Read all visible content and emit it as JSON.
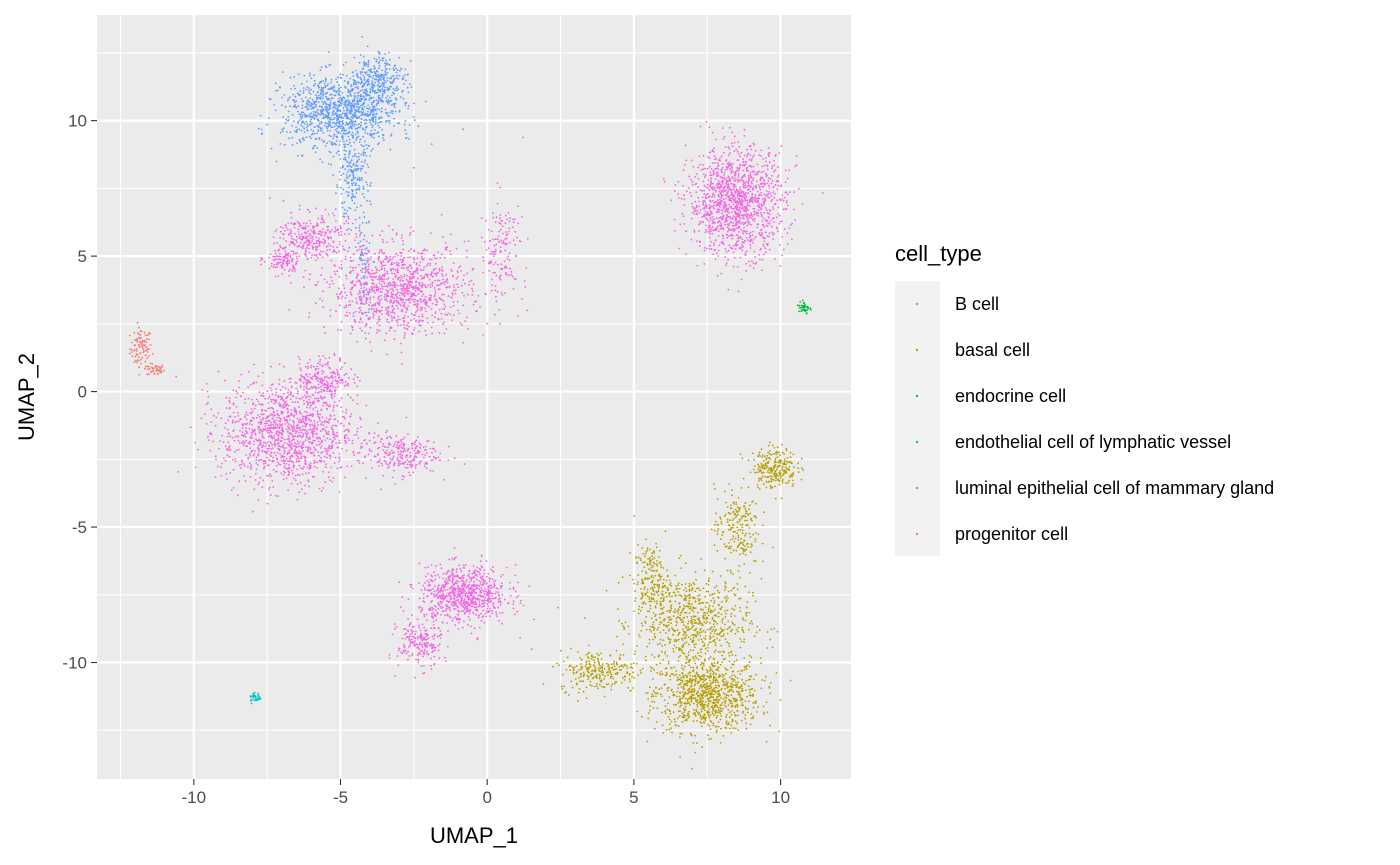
{
  "chart_data": {
    "type": "scatter",
    "xlabel": "UMAP_1",
    "ylabel": "UMAP_2",
    "xlim": [
      -13.3,
      12.4
    ],
    "ylim": [
      -14.3,
      13.9
    ],
    "x_ticks": [
      -10,
      -5,
      0,
      5,
      10
    ],
    "x_tick_labels": [
      "-10",
      "-5",
      "0",
      "5",
      "10"
    ],
    "y_ticks": [
      -10,
      -5,
      0,
      5,
      10
    ],
    "y_tick_labels": [
      "-10",
      "-5",
      "0",
      "5",
      "10"
    ],
    "grid": true,
    "panel_background": "#ebebeb",
    "legend": {
      "title": "cell_type",
      "placement": "right"
    },
    "series": [
      {
        "name": "B cell",
        "color": "#F8766D",
        "clusters": [
          {
            "x": -11.8,
            "y": 1.6,
            "sx": 0.25,
            "sy": 0.5,
            "n": 90
          },
          {
            "x": -11.3,
            "y": 0.8,
            "sx": 0.2,
            "sy": 0.15,
            "n": 40
          }
        ]
      },
      {
        "name": "basal cell",
        "color": "#B79F00",
        "clusters": [
          {
            "x": 7.5,
            "y": -11.2,
            "sx": 1.2,
            "sy": 0.9,
            "n": 900
          },
          {
            "x": 7.0,
            "y": -8.5,
            "sx": 1.3,
            "sy": 1.2,
            "n": 700
          },
          {
            "x": 3.8,
            "y": -10.3,
            "sx": 0.9,
            "sy": 0.5,
            "n": 250
          },
          {
            "x": 5.6,
            "y": -7.0,
            "sx": 0.4,
            "sy": 0.9,
            "n": 180
          },
          {
            "x": 8.5,
            "y": -5.0,
            "sx": 0.5,
            "sy": 1.0,
            "n": 200
          },
          {
            "x": 9.8,
            "y": -2.8,
            "sx": 0.5,
            "sy": 0.5,
            "n": 250
          }
        ]
      },
      {
        "name": "endocrine cell",
        "color": "#00BA38",
        "clusters": [
          {
            "x": 10.8,
            "y": 3.1,
            "sx": 0.12,
            "sy": 0.2,
            "n": 40
          }
        ]
      },
      {
        "name": "endothelial cell of lymphatic vessel",
        "color": "#00BFC4",
        "clusters": [
          {
            "x": -7.9,
            "y": -11.3,
            "sx": 0.15,
            "sy": 0.12,
            "n": 30
          }
        ]
      },
      {
        "name": "luminal epithelial cell of mammary gland",
        "color": "#619CFF",
        "clusters": [
          {
            "x": -5.0,
            "y": 10.3,
            "sx": 1.3,
            "sy": 0.9,
            "n": 1100
          },
          {
            "x": -3.7,
            "y": 11.5,
            "sx": 0.6,
            "sy": 0.7,
            "n": 300
          },
          {
            "x": -4.6,
            "y": 7.8,
            "sx": 0.4,
            "sy": 1.0,
            "n": 200
          },
          {
            "x": -4.2,
            "y": 4.5,
            "sx": 0.2,
            "sy": 1.3,
            "n": 60
          }
        ]
      },
      {
        "name": "progenitor cell",
        "color": "#F564E3",
        "clusters": [
          {
            "x": -3.0,
            "y": 3.8,
            "sx": 1.6,
            "sy": 1.1,
            "n": 1100
          },
          {
            "x": -6.0,
            "y": 5.7,
            "sx": 0.8,
            "sy": 0.6,
            "n": 300
          },
          {
            "x": -7.0,
            "y": 4.8,
            "sx": 0.4,
            "sy": 0.3,
            "n": 100
          },
          {
            "x": 0.5,
            "y": 5.2,
            "sx": 0.5,
            "sy": 1.3,
            "n": 150
          },
          {
            "x": -6.8,
            "y": -1.5,
            "sx": 1.5,
            "sy": 1.3,
            "n": 1300
          },
          {
            "x": -3.0,
            "y": -2.3,
            "sx": 0.9,
            "sy": 0.5,
            "n": 250
          },
          {
            "x": -5.5,
            "y": 0.5,
            "sx": 0.6,
            "sy": 0.5,
            "n": 200
          },
          {
            "x": -0.8,
            "y": -7.5,
            "sx": 1.0,
            "sy": 0.7,
            "n": 800
          },
          {
            "x": -2.3,
            "y": -9.3,
            "sx": 0.5,
            "sy": 0.6,
            "n": 200
          },
          {
            "x": 8.5,
            "y": 7.0,
            "sx": 1.1,
            "sy": 1.3,
            "n": 1300
          }
        ]
      }
    ]
  }
}
